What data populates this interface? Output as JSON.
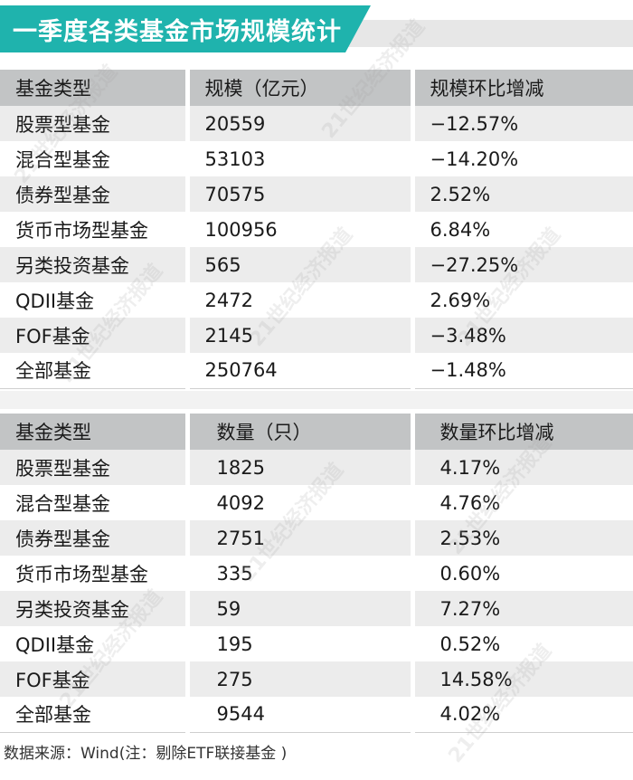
{
  "title": "一季度各类基金市场规模统计",
  "table1": {
    "headers": [
      "基金类型",
      "规模（亿元）",
      "规模环比增减"
    ],
    "rows": [
      [
        "股票型基金",
        "20559",
        "−12.57%"
      ],
      [
        "混合型基金",
        "53103",
        "−14.20%"
      ],
      [
        "债券型基金",
        "70575",
        "2.52%"
      ],
      [
        "货币市场型基金",
        "100956",
        "6.84%"
      ],
      [
        "另类投资基金",
        "565",
        "−27.25%"
      ],
      [
        "QDII基金",
        "2472",
        "2.69%"
      ],
      [
        "FOF基金",
        "2145",
        "−3.48%"
      ],
      [
        "全部基金",
        "250764",
        "−1.48%"
      ]
    ]
  },
  "table2": {
    "headers": [
      "基金类型",
      "数量（只）",
      "数量环比增减"
    ],
    "rows": [
      [
        "股票型基金",
        "1825",
        "4.17%"
      ],
      [
        "混合型基金",
        "4092",
        "4.76%"
      ],
      [
        "债券型基金",
        "2751",
        "2.53%"
      ],
      [
        "货币市场型基金",
        "335",
        "0.60%"
      ],
      [
        "另类投资基金",
        "59",
        "7.27%"
      ],
      [
        "QDII基金",
        "195",
        "0.52%"
      ],
      [
        "FOF基金",
        "275",
        "14.58%"
      ],
      [
        "全部基金",
        "9544",
        "4.02%"
      ]
    ]
  },
  "source": "数据来源：Wind(注：剔除ETF联接基金 )",
  "watermark": "21世纪经济报道",
  "colors": {
    "title_bg": "#1fb3ad",
    "header_bg": "#c2c4c5",
    "row_alt_bg": "#ececec"
  }
}
